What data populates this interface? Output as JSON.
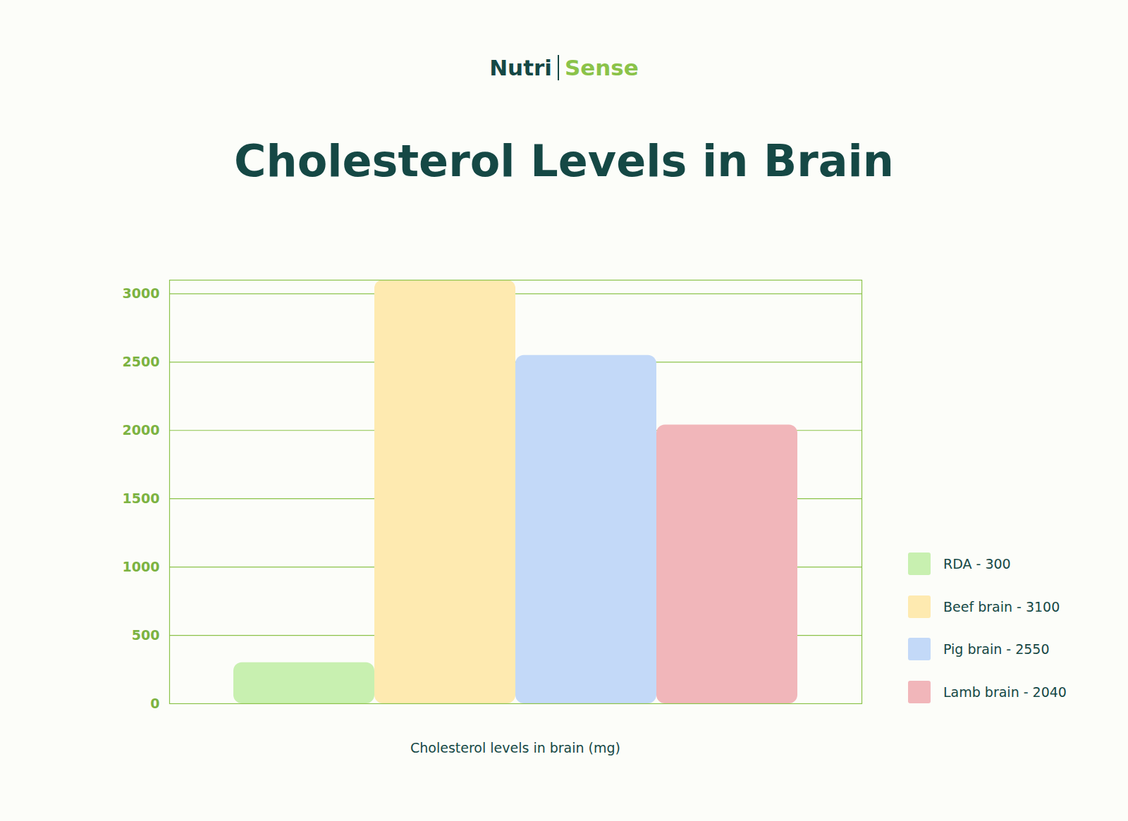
{
  "chart_data": {
    "type": "bar",
    "title": "Cholesterol Levels in Brain",
    "annotations": [
      "Nutri",
      "Sense"
    ],
    "x_label": "Cholesterol levels in brain (mg)",
    "categories": [
      "RDA - 300",
      "Beef brain - 3100",
      "Pig brain - 2550",
      "Lamb brain - 2040"
    ],
    "values": [
      300,
      3100,
      2550,
      2040
    ],
    "colors": [
      "#c8f0b0",
      "#feeab0",
      "#c3d9f8",
      "#f1b6ba"
    ],
    "ylim": [
      0,
      3100
    ],
    "yticks": [
      0,
      500,
      1000,
      1500,
      2000,
      2500,
      3000
    ],
    "grid": true,
    "legend": "right",
    "tick_labels": "y"
  }
}
